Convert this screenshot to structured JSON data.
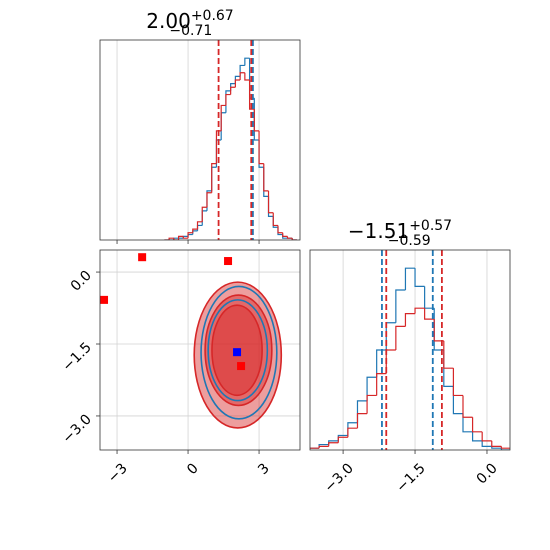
{
  "chart_data": [
    {
      "type": "histogram",
      "title": {
        "value": "2.00",
        "upper": "+0.67",
        "lower": "−0.71"
      },
      "xlim": [
        -3.72,
        4.73
      ],
      "ylim": [
        0,
        1.1
      ],
      "xticks": [
        -3,
        0,
        3
      ],
      "xticklabels": false,
      "grid": true,
      "bins": [
        -1.0,
        -0.8,
        -0.6,
        -0.4,
        -0.2,
        0.0,
        0.2,
        0.4,
        0.6,
        0.8,
        1.0,
        1.2,
        1.4,
        1.6,
        1.8,
        2.0,
        2.2,
        2.4,
        2.6,
        2.8,
        3.0,
        3.2,
        3.4,
        3.6,
        3.8,
        4.0,
        4.2,
        4.4,
        4.6
      ],
      "series": [
        {
          "color": "#1f77b4",
          "values": [
            0,
            0,
            0.01,
            0.01,
            0.02,
            0.03,
            0.05,
            0.08,
            0.16,
            0.27,
            0.4,
            0.55,
            0.7,
            0.82,
            0.86,
            0.9,
            0.96,
            1.0,
            0.78,
            0.55,
            0.4,
            0.24,
            0.13,
            0.07,
            0.03,
            0.01,
            0.01,
            0
          ]
        },
        {
          "color": "#d62728",
          "values": [
            0,
            0.01,
            0,
            0.02,
            0.01,
            0.04,
            0.06,
            0.1,
            0.18,
            0.26,
            0.42,
            0.6,
            0.74,
            0.8,
            0.84,
            0.88,
            0.92,
            0.88,
            0.72,
            0.6,
            0.42,
            0.27,
            0.15,
            0.08,
            0.04,
            0.02,
            0.01,
            0
          ]
        }
      ],
      "quantile_lines": [
        {
          "color": "#1f77b4",
          "values": [
            2.74
          ]
        },
        {
          "color": "#d62728",
          "values": [
            1.29,
            2.67
          ]
        }
      ]
    },
    {
      "type": "contour",
      "xlim": [
        -3.72,
        4.73
      ],
      "ylim": [
        -3.71,
        0.46
      ],
      "grid": true,
      "xticks": [
        {
          "value": -3,
          "label": "−3"
        },
        0,
        3
      ],
      "yticks": [
        {
          "value": 0,
          "label": "0.0"
        },
        {
          "value": -1.5,
          "label": "−1.5"
        },
        {
          "value": -3,
          "label": "−3.0"
        }
      ],
      "contours": [
        {
          "color": "#d62728",
          "filled": true,
          "ellipses": [
            {
              "cx": 2.1,
              "cy": -1.73,
              "rx": 1.84,
              "ry": 1.52
            },
            {
              "cx": 2.13,
              "cy": -1.63,
              "rx": 1.41,
              "ry": 1.15
            },
            {
              "cx": 2.07,
              "cy": -1.63,
              "rx": 1.06,
              "ry": 0.94
            }
          ]
        },
        {
          "color": "#1f77b4",
          "filled": false,
          "ellipses": [
            {
              "cx": 2.15,
              "cy": -1.68,
              "rx": 1.6,
              "ry": 1.38
            },
            {
              "cx": 2.1,
              "cy": -1.63,
              "rx": 1.25,
              "ry": 1.05
            }
          ]
        }
      ],
      "markers": [
        {
          "color": "#ff0000",
          "x": [
            -3.55,
            -1.94,
            1.69,
            2.24
          ],
          "y": [
            -0.58,
            0.31,
            0.23,
            -1.96
          ]
        },
        {
          "color": "#0000ff",
          "x": [
            2.07
          ],
          "y": [
            -1.67
          ]
        }
      ]
    },
    {
      "type": "histogram",
      "title": {
        "value": "−1.51",
        "upper": "+0.57",
        "lower": "−0.59"
      },
      "xlim": [
        -3.69,
        0.48
      ],
      "ylim": [
        0,
        1.1
      ],
      "grid": true,
      "xticklabels": true,
      "xticks": [
        {
          "value": -3,
          "label": "−3.0"
        },
        {
          "value": -1.5,
          "label": "−1.5"
        },
        {
          "value": 0,
          "label": "0.0"
        }
      ],
      "bins": [
        -3.7,
        -3.5,
        -3.3,
        -3.1,
        -2.9,
        -2.7,
        -2.5,
        -2.3,
        -2.1,
        -1.9,
        -1.7,
        -1.5,
        -1.3,
        -1.1,
        -0.9,
        -0.7,
        -0.5,
        -0.3,
        -0.1,
        0.1,
        0.3,
        0.5
      ],
      "series": [
        {
          "color": "#1f77b4",
          "values": [
            0.01,
            0.03,
            0.05,
            0.08,
            0.15,
            0.27,
            0.4,
            0.55,
            0.7,
            0.88,
            1.0,
            0.9,
            0.78,
            0.55,
            0.35,
            0.2,
            0.1,
            0.05,
            0.02,
            0.01,
            0
          ]
        },
        {
          "color": "#d62728",
          "values": [
            0.01,
            0.02,
            0.04,
            0.07,
            0.12,
            0.2,
            0.3,
            0.42,
            0.55,
            0.68,
            0.75,
            0.78,
            0.72,
            0.6,
            0.45,
            0.3,
            0.18,
            0.1,
            0.05,
            0.02,
            0.01
          ]
        }
      ],
      "quantile_lines": [
        {
          "color": "#1f77b4",
          "values": [
            -2.19,
            -1.13
          ]
        },
        {
          "color": "#d62728",
          "values": [
            -2.1,
            -0.94
          ]
        }
      ]
    }
  ]
}
